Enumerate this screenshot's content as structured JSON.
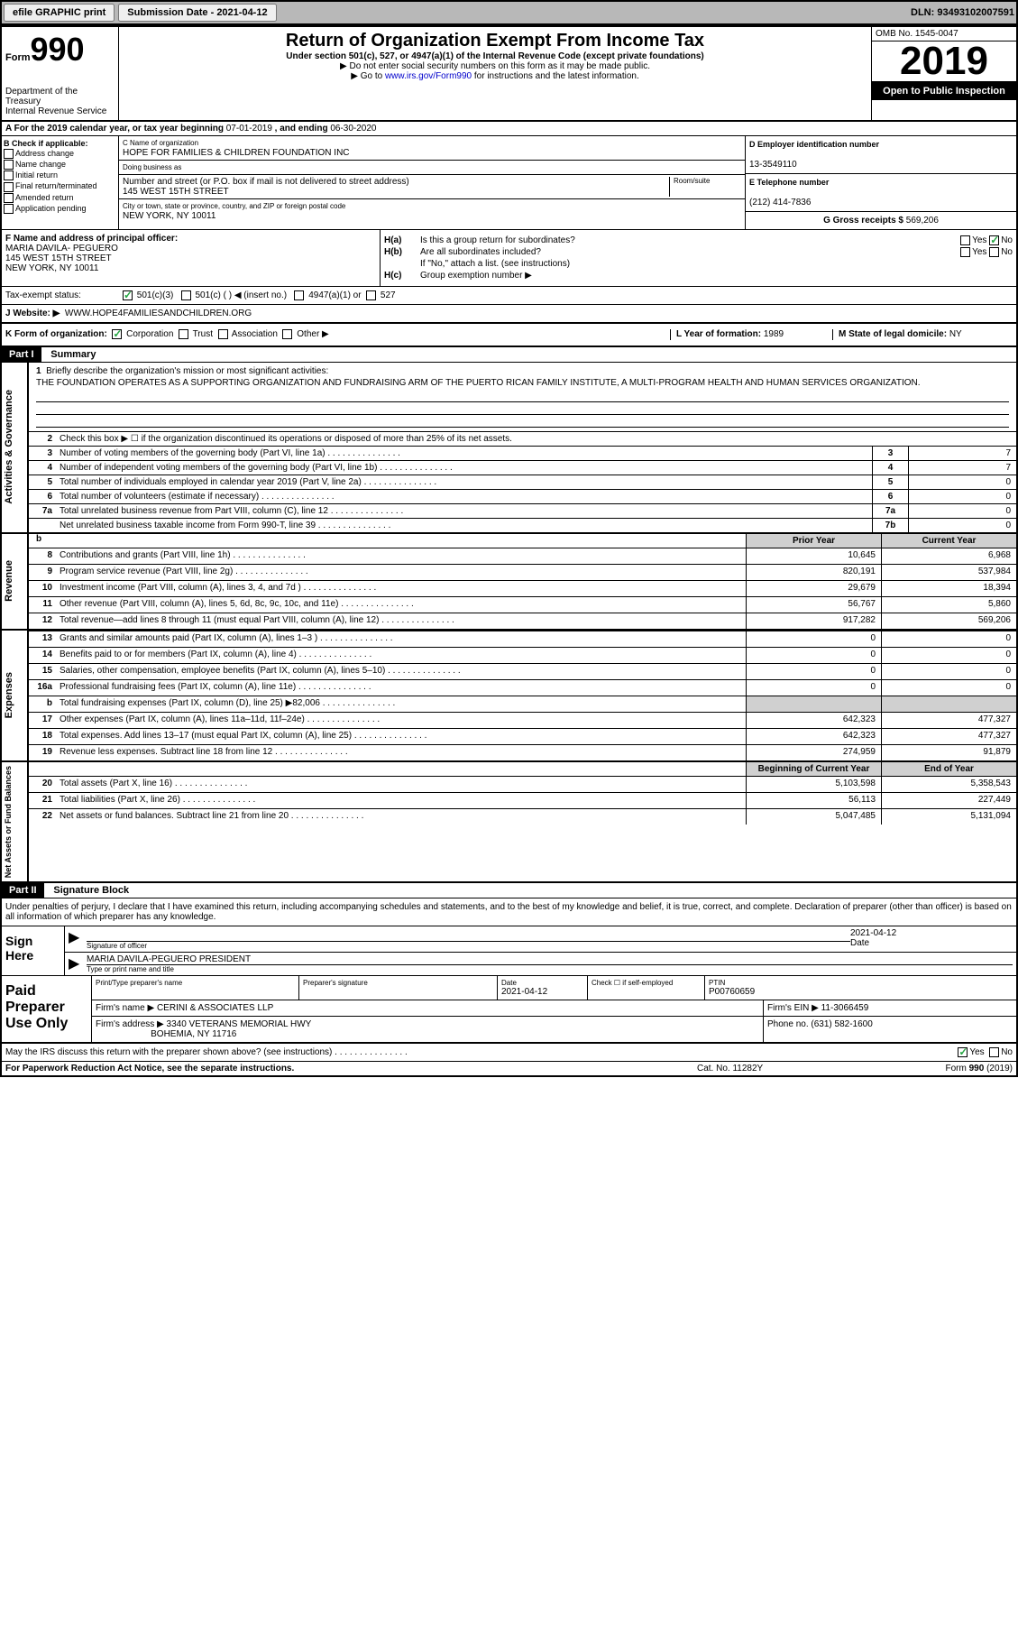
{
  "topbar": {
    "efile": "efile GRAPHIC print",
    "submission": "Submission Date - 2021-04-12",
    "dln": "DLN: 93493102007591"
  },
  "header": {
    "form_word": "Form",
    "form_num": "990",
    "title": "Return of Organization Exempt From Income Tax",
    "subtitle": "Under section 501(c), 527, or 4947(a)(1) of the Internal Revenue Code (except private foundations)",
    "line2": "▶ Do not enter social security numbers on this form as it may be made public.",
    "line3_pre": "▶ Go to ",
    "line3_link": "www.irs.gov/Form990",
    "line3_post": " for instructions and the latest information.",
    "omb": "OMB No. 1545-0047",
    "year": "2019",
    "open": "Open to Public Inspection",
    "dept1": "Department of the Treasury",
    "dept2": "Internal Revenue Service"
  },
  "period": {
    "label_a": "A For the 2019 calendar year, or tax year beginning ",
    "begin": "07-01-2019",
    "mid": " , and ending ",
    "end": "06-30-2020"
  },
  "checks": {
    "header": "B Check if applicable:",
    "c1": "Address change",
    "c2": "Name change",
    "c3": "Initial return",
    "c4": "Final return/terminated",
    "c5": "Amended return",
    "c6": "Application pending"
  },
  "org": {
    "name_lbl": "C Name of organization",
    "name": "HOPE FOR FAMILIES & CHILDREN FOUNDATION INC",
    "dba_lbl": "Doing business as",
    "addr_lbl": "Number and street (or P.O. box if mail is not delivered to street address)",
    "addr": "145 WEST 15TH STREET",
    "room_lbl": "Room/suite",
    "city_lbl": "City or town, state or province, country, and ZIP or foreign postal code",
    "city": "NEW YORK, NY  10011"
  },
  "right": {
    "ein_lbl": "D Employer identification number",
    "ein": "13-3549110",
    "phone_lbl": "E Telephone number",
    "phone": "(212) 414-7836",
    "gross_lbl": "G Gross receipts $ ",
    "gross": "569,206"
  },
  "officer": {
    "lbl": "F  Name and address of principal officer:",
    "name": "MARIA DAVILA- PEGUERO",
    "addr": "145 WEST 15TH STREET",
    "city": "NEW YORK, NY  10011"
  },
  "h": {
    "ha_lbl": "H(a)",
    "ha_txt": "Is this a group return for subordinates?",
    "hb_lbl": "H(b)",
    "hb_txt": "Are all subordinates included?",
    "hb_note": "If \"No,\" attach a list. (see instructions)",
    "hc_lbl": "H(c)",
    "hc_txt": "Group exemption number ▶",
    "yes": "Yes",
    "no": "No"
  },
  "status": {
    "lbl": "Tax-exempt status:",
    "s1": "501(c)(3)",
    "s2": "501(c) (   ) ◀ (insert no.)",
    "s3": "4947(a)(1) or",
    "s4": "527"
  },
  "website": {
    "lbl": "J Website: ▶",
    "val": "WWW.HOPE4FAMILIESANDCHILDREN.ORG"
  },
  "k": {
    "lbl": "K Form of organization:",
    "corp": "Corporation",
    "trust": "Trust",
    "assoc": "Association",
    "other": "Other ▶",
    "l_lbl": "L Year of formation: ",
    "l_val": "1989",
    "m_lbl": "M State of legal domicile: ",
    "m_val": "NY"
  },
  "part1": {
    "header": "Part I",
    "title": "Summary",
    "side1": "Activities & Governance",
    "side2": "Revenue",
    "side3": "Expenses",
    "side4": "Net Assets or Fund Balances",
    "q1": "Briefly describe the organization's mission or most significant activities:",
    "mission": "THE FOUNDATION OPERATES AS A SUPPORTING ORGANIZATION AND FUNDRAISING ARM OF THE PUERTO RICAN FAMILY INSTITUTE, A MULTI-PROGRAM HEALTH AND HUMAN SERVICES ORGANIZATION.",
    "q2": "Check this box ▶ ☐  if the organization discontinued its operations or disposed of more than 25% of its net assets.",
    "rows": [
      {
        "n": "3",
        "d": "Number of voting members of the governing body (Part VI, line 1a)",
        "b": "3",
        "v": "7"
      },
      {
        "n": "4",
        "d": "Number of independent voting members of the governing body (Part VI, line 1b)",
        "b": "4",
        "v": "7"
      },
      {
        "n": "5",
        "d": "Total number of individuals employed in calendar year 2019 (Part V, line 2a)",
        "b": "5",
        "v": "0"
      },
      {
        "n": "6",
        "d": "Total number of volunteers (estimate if necessary)",
        "b": "6",
        "v": "0"
      },
      {
        "n": "7a",
        "d": "Total unrelated business revenue from Part VIII, column (C), line 12",
        "b": "7a",
        "v": "0"
      },
      {
        "n": "",
        "d": "Net unrelated business taxable income from Form 990-T, line 39",
        "b": "7b",
        "v": "0"
      }
    ],
    "prior_h": "Prior Year",
    "current_h": "Current Year",
    "begin_h": "Beginning of Current Year",
    "end_h": "End of Year"
  },
  "fin": {
    "revenue": [
      {
        "n": "8",
        "d": "Contributions and grants (Part VIII, line 1h)",
        "p": "10,645",
        "c": "6,968"
      },
      {
        "n": "9",
        "d": "Program service revenue (Part VIII, line 2g)",
        "p": "820,191",
        "c": "537,984"
      },
      {
        "n": "10",
        "d": "Investment income (Part VIII, column (A), lines 3, 4, and 7d )",
        "p": "29,679",
        "c": "18,394"
      },
      {
        "n": "11",
        "d": "Other revenue (Part VIII, column (A), lines 5, 6d, 8c, 9c, 10c, and 11e)",
        "p": "56,767",
        "c": "5,860"
      },
      {
        "n": "12",
        "d": "Total revenue—add lines 8 through 11 (must equal Part VIII, column (A), line 12)",
        "p": "917,282",
        "c": "569,206"
      }
    ],
    "expenses": [
      {
        "n": "13",
        "d": "Grants and similar amounts paid (Part IX, column (A), lines 1–3 )",
        "p": "0",
        "c": "0"
      },
      {
        "n": "14",
        "d": "Benefits paid to or for members (Part IX, column (A), line 4)",
        "p": "0",
        "c": "0"
      },
      {
        "n": "15",
        "d": "Salaries, other compensation, employee benefits (Part IX, column (A), lines 5–10)",
        "p": "0",
        "c": "0"
      },
      {
        "n": "16a",
        "d": "Professional fundraising fees (Part IX, column (A), line 11e)",
        "p": "0",
        "c": "0"
      },
      {
        "n": "b",
        "d": "Total fundraising expenses (Part IX, column (D), line 25) ▶82,006",
        "p": "",
        "c": "",
        "shaded": true
      },
      {
        "n": "17",
        "d": "Other expenses (Part IX, column (A), lines 11a–11d, 11f–24e)",
        "p": "642,323",
        "c": "477,327"
      },
      {
        "n": "18",
        "d": "Total expenses. Add lines 13–17 (must equal Part IX, column (A), line 25)",
        "p": "642,323",
        "c": "477,327"
      },
      {
        "n": "19",
        "d": "Revenue less expenses. Subtract line 18 from line 12",
        "p": "274,959",
        "c": "91,879"
      }
    ],
    "netassets": [
      {
        "n": "20",
        "d": "Total assets (Part X, line 16)",
        "p": "5,103,598",
        "c": "5,358,543"
      },
      {
        "n": "21",
        "d": "Total liabilities (Part X, line 26)",
        "p": "56,113",
        "c": "227,449"
      },
      {
        "n": "22",
        "d": "Net assets or fund balances. Subtract line 21 from line 20",
        "p": "5,047,485",
        "c": "5,131,094"
      }
    ]
  },
  "part2": {
    "header": "Part II",
    "title": "Signature Block",
    "text": "Under penalties of perjury, I declare that I have examined this return, including accompanying schedules and statements, and to the best of my knowledge and belief, it is true, correct, and complete. Declaration of preparer (other than officer) is based on all information of which preparer has any knowledge."
  },
  "sign": {
    "lbl": "Sign Here",
    "sig_lbl": "Signature of officer",
    "date_lbl": "Date",
    "date": "2021-04-12",
    "name": "MARIA DAVILA-PEGUERO  PRESIDENT",
    "name_lbl": "Type or print name and title"
  },
  "paid": {
    "lbl": "Paid Preparer Use Only",
    "c1_lbl": "Print/Type preparer's name",
    "c2_lbl": "Preparer's signature",
    "c3_lbl": "Date",
    "c3_val": "2021-04-12",
    "c4_lbl": "Check ☐ if self-employed",
    "c5_lbl": "PTIN",
    "c5_val": "P00760659",
    "firm_lbl": "Firm's name    ▶",
    "firm": "CERINI & ASSOCIATES LLP",
    "ein_lbl": "Firm's EIN ▶",
    "ein": "11-3066459",
    "addr_lbl": "Firm's address ▶",
    "addr1": "3340 VETERANS MEMORIAL HWY",
    "addr2": "BOHEMIA, NY  11716",
    "phone_lbl": "Phone no.",
    "phone": "(631) 582-1600"
  },
  "discuss": {
    "txt": "May the IRS discuss this return with the preparer shown above? (see instructions)",
    "yes": "Yes",
    "no": "No"
  },
  "footer": {
    "f1": "For Paperwork Reduction Act Notice, see the separate instructions.",
    "f2": "Cat. No. 11282Y",
    "f3": "Form 990 (2019)"
  }
}
